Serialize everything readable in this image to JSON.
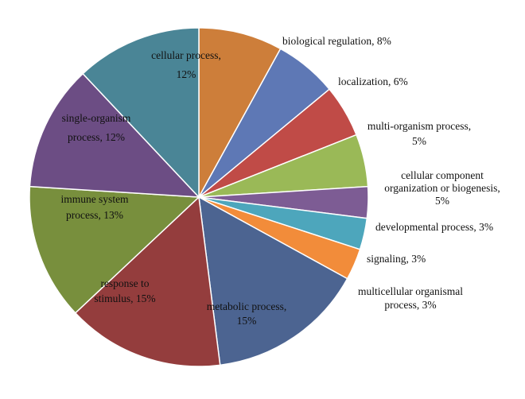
{
  "chart_data": {
    "type": "pie",
    "start_angle_degrees": 0,
    "direction": "clockwise",
    "slices": [
      {
        "label": "biological regulation, 8%",
        "value": 8,
        "color": "#CD7E3A",
        "label_position": "outside"
      },
      {
        "label": "localization, 6%",
        "value": 6,
        "color": "#5E78B5",
        "label_position": "outside"
      },
      {
        "label": "multi-organism process, 5%",
        "value": 5,
        "color": "#C04B47",
        "label_position": "outside"
      },
      {
        "label": "cellular component organization or biogenesis, 5%",
        "value": 5,
        "color": "#9AB957",
        "label_position": "outside"
      },
      {
        "label": "developmental process, 3%",
        "value": 3,
        "color": "#7D5C94",
        "label_position": "outside"
      },
      {
        "label": "signaling, 3%",
        "value": 3,
        "color": "#4DA6BC",
        "label_position": "outside"
      },
      {
        "label": "multicellular organismal process, 3%",
        "value": 3,
        "color": "#F28C3A",
        "label_position": "outside"
      },
      {
        "label": "metabolic process, 15%",
        "value": 15,
        "color": "#4C6491",
        "label_position": "inside"
      },
      {
        "label": "response to stimulus, 15%",
        "value": 15,
        "color": "#943D3D",
        "label_position": "inside"
      },
      {
        "label": "immune system process, 13%",
        "value": 13,
        "color": "#788F3D",
        "label_position": "inside"
      },
      {
        "label": "single-organism process, 12%",
        "value": 12,
        "color": "#6C4D84",
        "label_position": "inside"
      },
      {
        "label": "cellular process, 12%",
        "value": 12,
        "color": "#4A8596",
        "label_position": "inside"
      }
    ]
  }
}
